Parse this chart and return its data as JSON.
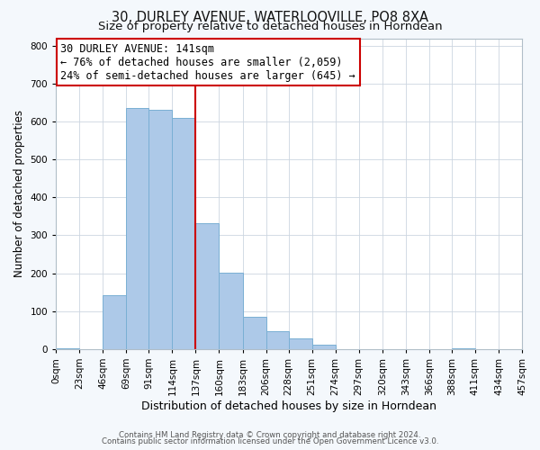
{
  "title": "30, DURLEY AVENUE, WATERLOOVILLE, PO8 8XA",
  "subtitle": "Size of property relative to detached houses in Horndean",
  "xlabel": "Distribution of detached houses by size in Horndean",
  "ylabel": "Number of detached properties",
  "bin_edges": [
    0,
    23,
    46,
    69,
    91,
    114,
    137,
    160,
    183,
    206,
    228,
    251,
    274,
    297,
    320,
    343,
    366,
    388,
    411,
    434,
    457
  ],
  "bin_labels": [
    "0sqm",
    "23sqm",
    "46sqm",
    "69sqm",
    "91sqm",
    "114sqm",
    "137sqm",
    "160sqm",
    "183sqm",
    "206sqm",
    "228sqm",
    "251sqm",
    "274sqm",
    "297sqm",
    "320sqm",
    "343sqm",
    "366sqm",
    "388sqm",
    "411sqm",
    "434sqm",
    "457sqm"
  ],
  "counts": [
    3,
    0,
    142,
    635,
    632,
    610,
    332,
    201,
    84,
    46,
    28,
    12,
    0,
    0,
    0,
    0,
    0,
    2,
    0,
    0
  ],
  "bar_color": "#adc9e8",
  "bar_edge_color": "#7aafd4",
  "property_line_x": 137,
  "property_line_color": "#cc0000",
  "annotation_line1": "30 DURLEY AVENUE: 141sqm",
  "annotation_line2": "← 76% of detached houses are smaller (2,059)",
  "annotation_line3": "24% of semi-detached houses are larger (645) →",
  "annotation_box_color": "#ffffff",
  "annotation_box_edge_color": "#cc0000",
  "ylim": [
    0,
    820
  ],
  "yticks": [
    0,
    100,
    200,
    300,
    400,
    500,
    600,
    700,
    800
  ],
  "footer_line1": "Contains HM Land Registry data © Crown copyright and database right 2024.",
  "footer_line2": "Contains public sector information licensed under the Open Government Licence v3.0.",
  "background_color": "#f4f8fc",
  "plot_bg_color": "#ffffff",
  "title_fontsize": 10.5,
  "subtitle_fontsize": 9.5,
  "xlabel_fontsize": 9,
  "ylabel_fontsize": 8.5,
  "tick_fontsize": 7.5,
  "annotation_fontsize": 8.5,
  "footer_fontsize": 6.2
}
